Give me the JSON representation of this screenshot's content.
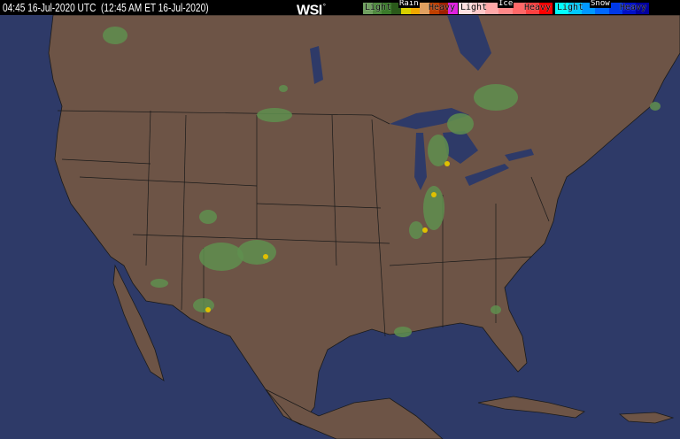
{
  "header": {
    "timestamp": "04:45 16-Jul-2020 UTC  (12:45 AM ET 16-Jul-2020)",
    "logo": "WSI",
    "logo_mark": "°"
  },
  "legend": [
    {
      "title": "Rain",
      "light": "Light",
      "heavy": "Heavy",
      "colors": [
        "#6f9f5f",
        "#4f8a3f",
        "#3a7a2a",
        "#2a5a1a",
        "#d8d000",
        "#f0a800",
        "#e0a060",
        "#c04000",
        "#a02000",
        "#e020e0"
      ]
    },
    {
      "title": "Ice",
      "light": "Light",
      "heavy": "Heavy",
      "colors": [
        "#ffe0e0",
        "#ffc8c8",
        "#ffa8a8",
        "#ff8888",
        "#ff6868",
        "#ff4040",
        "#ff0000"
      ]
    },
    {
      "title": "Snow",
      "light": "Light",
      "heavy": "Heavy",
      "colors": [
        "#00ffff",
        "#00c8ff",
        "#0098ff",
        "#0068ff",
        "#0038e8",
        "#0010c8",
        "#00009f"
      ]
    }
  ],
  "map": {
    "ocean_color": "#2e3a68",
    "land_color": "#6d5446",
    "border_color": "#1a1a1a",
    "precip_light": "#5f8f4f",
    "precip_heavy": "#e0c000"
  }
}
